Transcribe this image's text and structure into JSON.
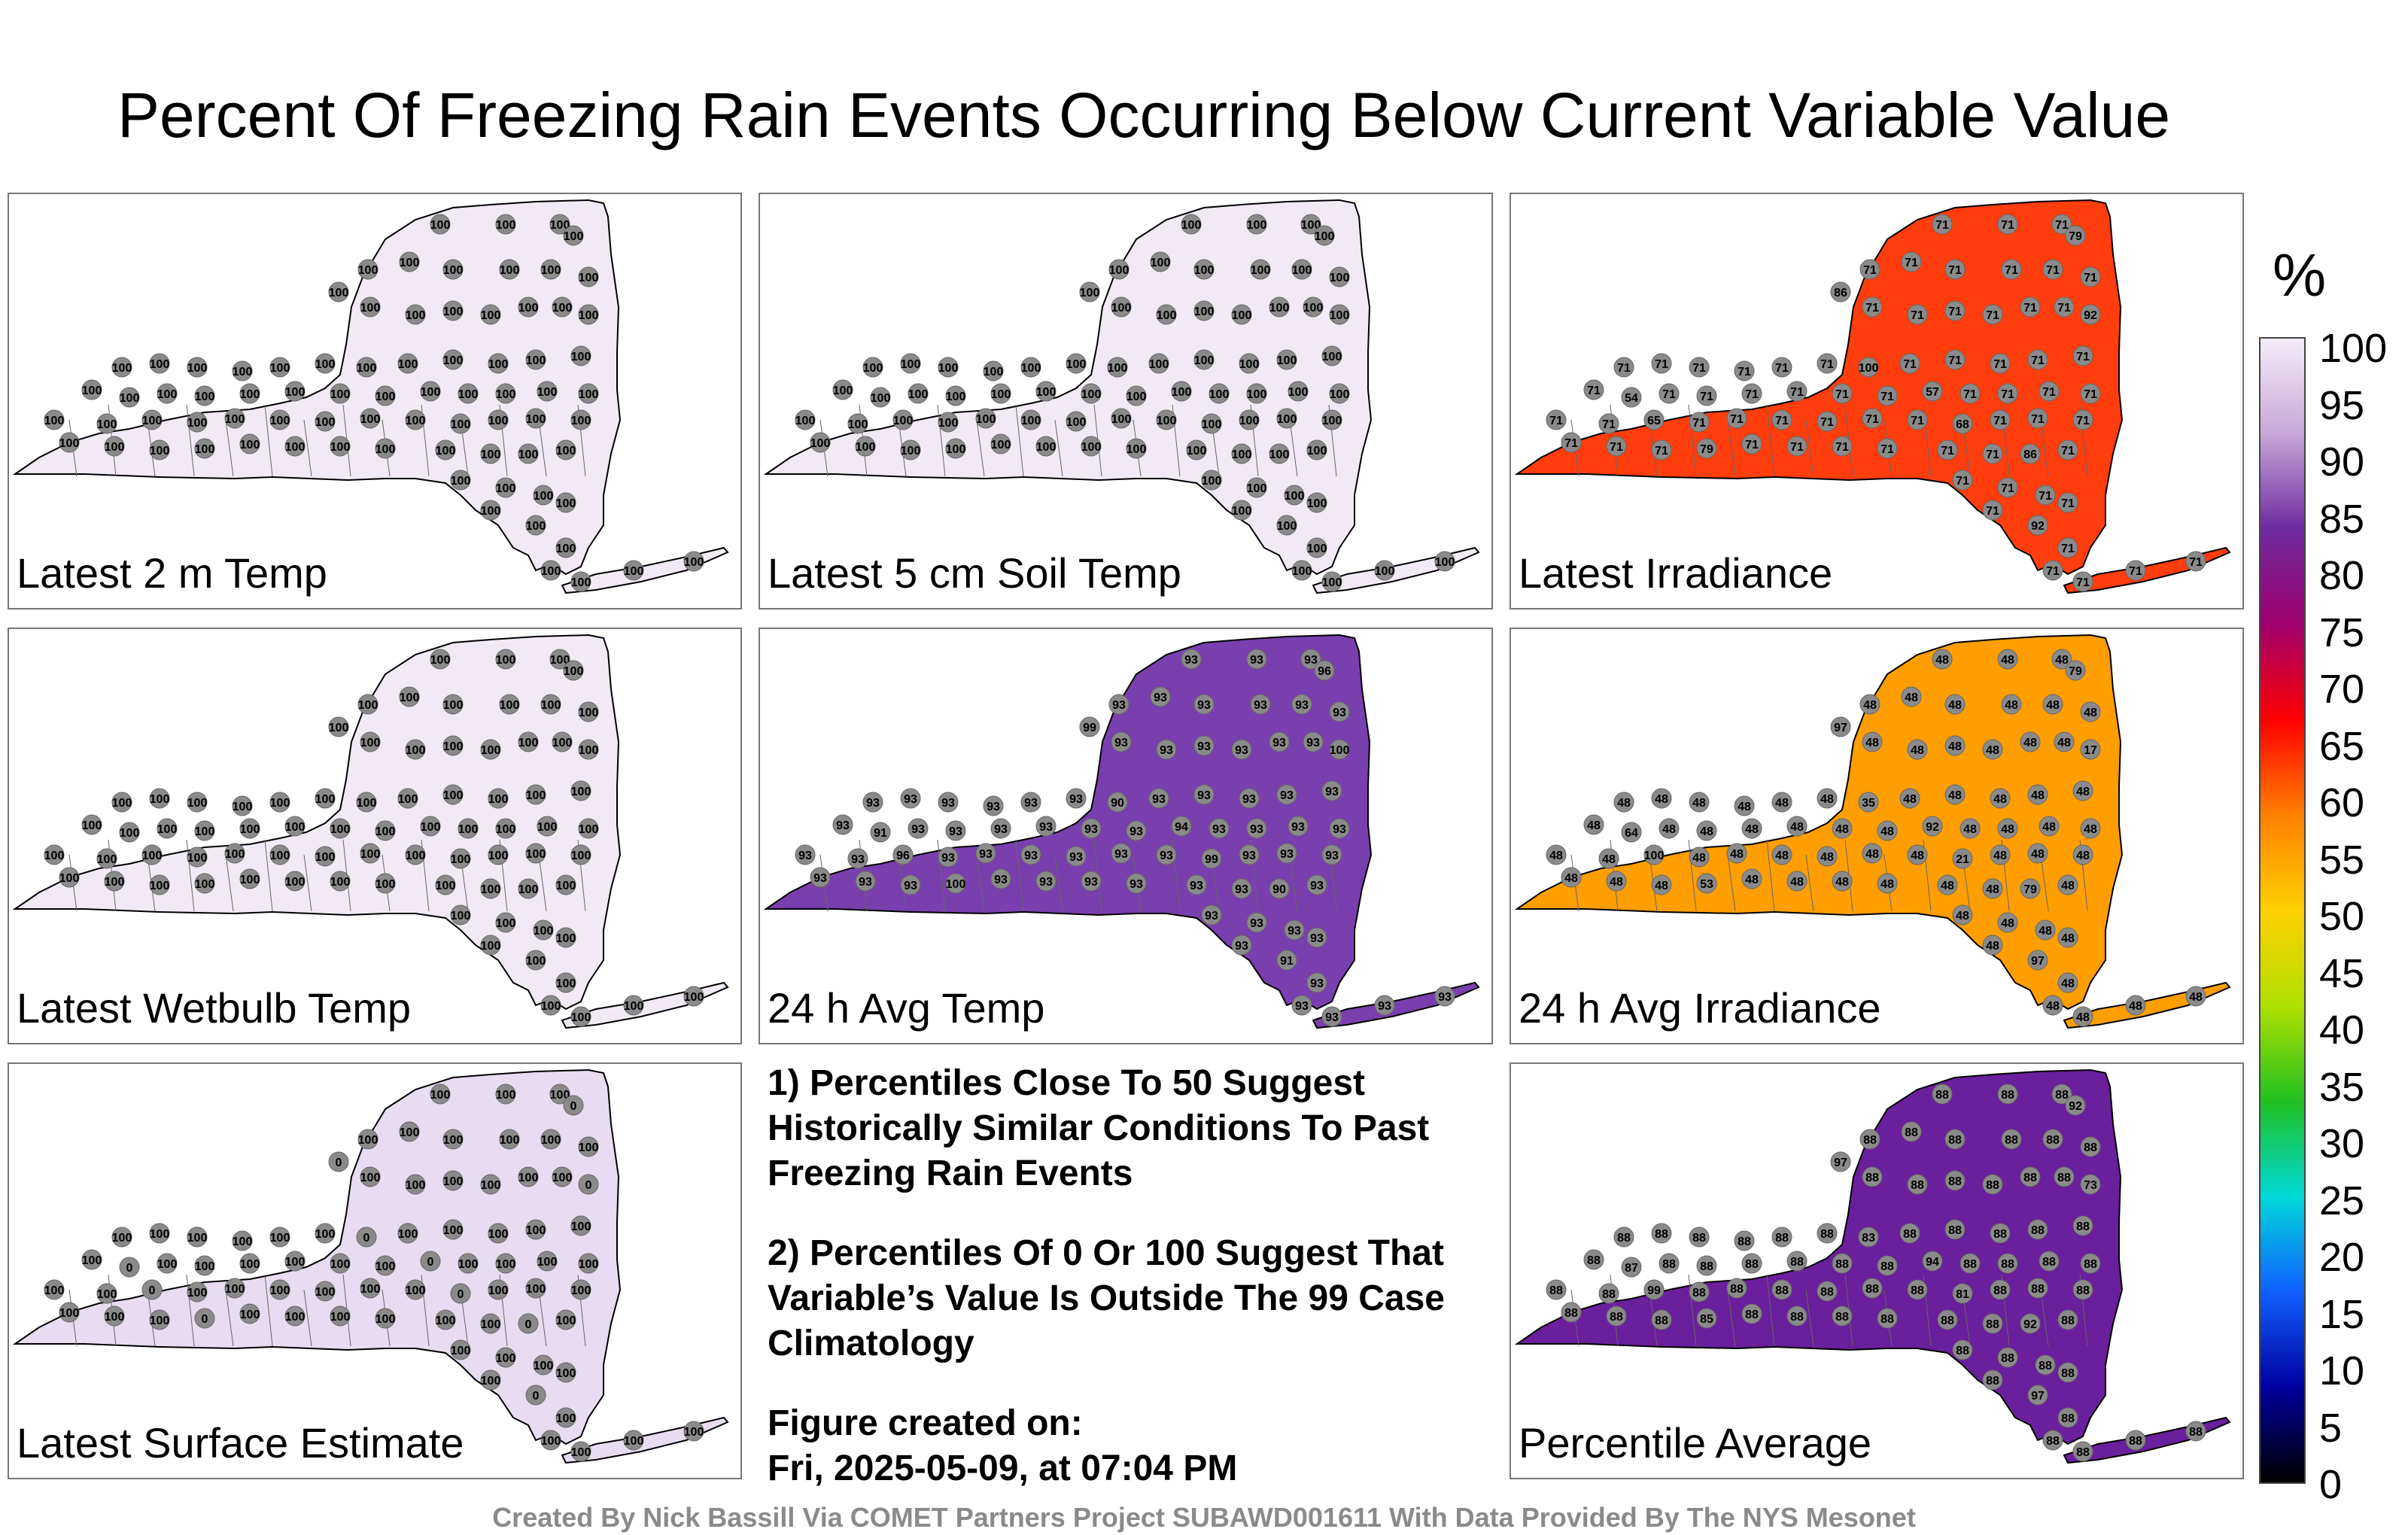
{
  "title": "Percent Of Freezing Rain Events Occurring Below Current Variable Value",
  "panels": [
    {
      "label": "Latest 2 m Temp",
      "fill": "#f1eaf5",
      "value": "100"
    },
    {
      "label": "Latest 5 cm Soil Temp",
      "fill": "#f1eaf5",
      "value": "100"
    },
    {
      "label": "Latest Irradiance",
      "fill": "#ff3d0d",
      "value": "71",
      "secondary_values": [
        "100",
        "92",
        "86",
        "79",
        "68",
        "65",
        "57",
        "54"
      ]
    },
    {
      "label": "Latest Wetbulb Temp",
      "fill": "#f1eaf5",
      "value": "100"
    },
    {
      "label": "24 h Avg Temp",
      "fill": "#7a3fae",
      "value": "93",
      "secondary_values": [
        "90",
        "91",
        "94",
        "96",
        "99",
        "100"
      ]
    },
    {
      "label": "24 h Avg Irradiance",
      "fill": "#ff9e00",
      "value": "48",
      "secondary_values": [
        "100",
        "97",
        "92",
        "79",
        "64",
        "53",
        "35",
        "21",
        "17"
      ]
    },
    {
      "label": "Latest Surface Estimate",
      "fill": "#e8dcf0",
      "value": "100",
      "secondary_values": [
        "0"
      ]
    },
    {
      "label": "Percentile Average",
      "fill": "#6a1f9c",
      "value": "88",
      "secondary_values": [
        "99",
        "97",
        "94",
        "92",
        "87",
        "85",
        "83",
        "81",
        "73"
      ]
    }
  ],
  "notes": {
    "n1": "1) Percentiles Close To 50 Suggest Historically Similar Conditions To Past Freezing Rain Events",
    "n2": "2) Percentiles Of 0 Or 100 Suggest That Variable’s Value Is Outside The 99 Case Climatology",
    "n3a": "Figure created on:",
    "n3b": "Fri, 2025-05-09, at 07:04 PM"
  },
  "colorbar": {
    "unit": "%",
    "ticks": [
      "100",
      "95",
      "90",
      "85",
      "80",
      "75",
      "70",
      "65",
      "60",
      "55",
      "50",
      "45",
      "40",
      "35",
      "30",
      "25",
      "20",
      "15",
      "10",
      "5",
      "0"
    ],
    "colors": [
      "#f4eef8",
      "#c7a6d8",
      "#6e2aa0",
      "#a0006e",
      "#ff0000",
      "#ff8000",
      "#ffd000",
      "#b0e000",
      "#20c020",
      "#00d8d8",
      "#1060ff",
      "#0000a0",
      "#000000"
    ]
  },
  "credit": "Created By Nick Bassill Via COMET Partners Project SUBAWD001611 With Data Provided By The NYS Mesonet"
}
